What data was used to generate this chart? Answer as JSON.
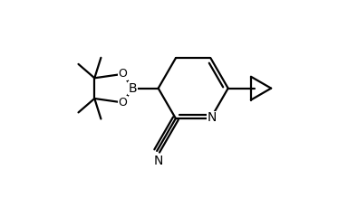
{
  "bg_color": "#ffffff",
  "line_color": "#000000",
  "line_width": 1.6,
  "font_size": 10,
  "figsize": [
    3.73,
    2.19
  ],
  "dpi": 100,
  "xlim": [
    -1.05,
    1.05
  ],
  "ylim": [
    -0.72,
    0.72
  ]
}
